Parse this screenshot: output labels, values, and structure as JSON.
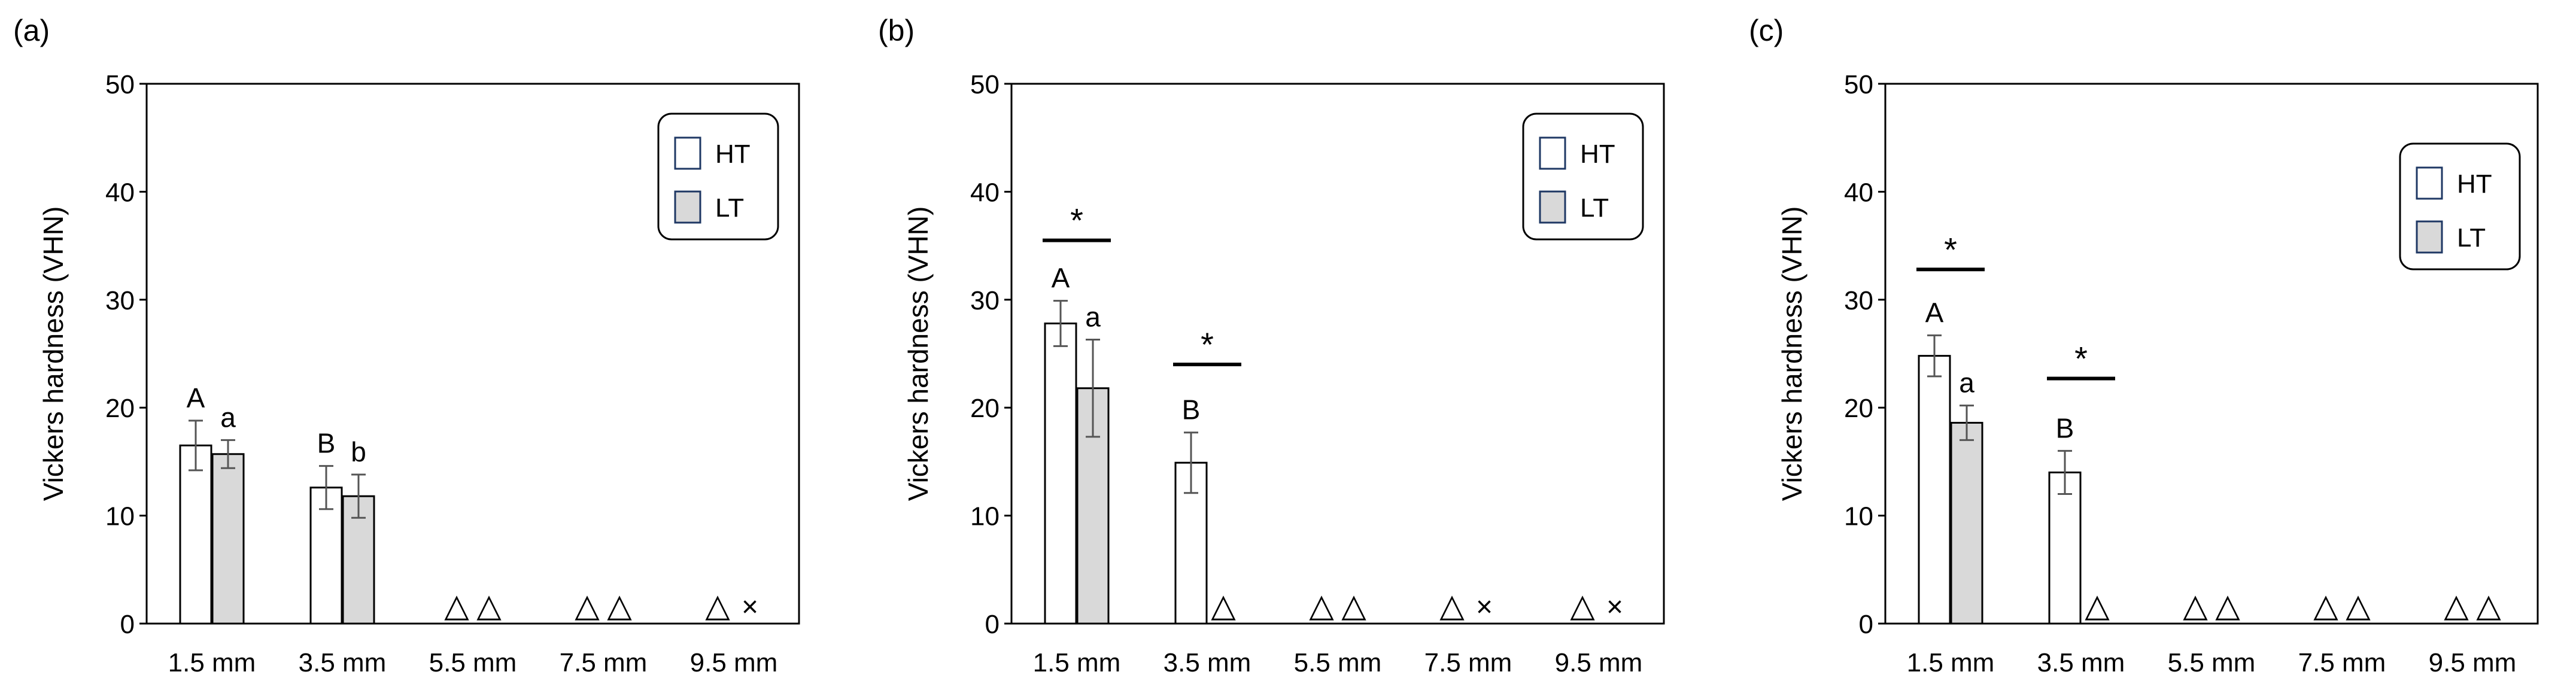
{
  "chart_data": [
    {
      "panel_label": "(a)",
      "type": "bar",
      "categories": [
        "1.5 mm",
        "3.5 mm",
        "5.5 mm",
        "7.5 mm",
        "9.5 mm"
      ],
      "ylabel": "Vickers hardness (VHN)",
      "ylim": [
        0,
        50
      ],
      "yticks": [
        "0",
        "10",
        "20",
        "30",
        "40",
        "50"
      ],
      "grid": false,
      "legend_position": "top-right",
      "series": [
        {
          "name": "HT",
          "fill": "#ffffff",
          "values": [
            16.5,
            12.6,
            null,
            null,
            null
          ],
          "errors": [
            2.3,
            2.0,
            null,
            null,
            null
          ],
          "letters": [
            "A",
            "B",
            null,
            null,
            null
          ],
          "markers": [
            null,
            null,
            "△",
            "△",
            "△"
          ]
        },
        {
          "name": "LT",
          "fill": "#d9d9d9",
          "values": [
            15.7,
            11.8,
            null,
            null,
            null
          ],
          "errors": [
            1.3,
            2.0,
            null,
            null,
            null
          ],
          "letters": [
            "a",
            "b",
            null,
            null,
            null
          ],
          "markers": [
            null,
            null,
            "△",
            "△",
            "×"
          ]
        }
      ],
      "significance": [],
      "colors": {
        "bar_stroke": "#000000",
        "error_bar": "#555555",
        "legend_hatch": "#1f3864"
      }
    },
    {
      "panel_label": "(b)",
      "type": "bar",
      "categories": [
        "1.5 mm",
        "3.5 mm",
        "5.5 mm",
        "7.5 mm",
        "9.5 mm"
      ],
      "ylabel": "Vickers hardness (VHN)",
      "ylim": [
        0,
        50
      ],
      "yticks": [
        "0",
        "10",
        "20",
        "30",
        "40",
        "50"
      ],
      "grid": false,
      "legend_position": "top-right",
      "series": [
        {
          "name": "HT",
          "fill": "#ffffff",
          "values": [
            27.8,
            14.9,
            null,
            null,
            null
          ],
          "errors": [
            2.1,
            2.8,
            null,
            null,
            null
          ],
          "letters": [
            "A",
            "B",
            null,
            null,
            null
          ],
          "markers": [
            null,
            null,
            "△",
            "△",
            "△"
          ]
        },
        {
          "name": "LT",
          "fill": "#d9d9d9",
          "values": [
            21.8,
            null,
            null,
            null,
            null
          ],
          "errors": [
            4.5,
            null,
            null,
            null,
            null
          ],
          "letters": [
            "a",
            null,
            null,
            null,
            null
          ],
          "markers": [
            null,
            "△",
            "△",
            "×",
            "×"
          ]
        }
      ],
      "significance": [
        {
          "category": "1.5 mm",
          "symbol": "*",
          "level": 35.5
        },
        {
          "category": "3.5 mm",
          "symbol": "*",
          "level": 24.0
        }
      ],
      "colors": {
        "bar_stroke": "#000000",
        "error_bar": "#555555",
        "legend_hatch": "#1f3864"
      }
    },
    {
      "panel_label": "(c)",
      "type": "bar",
      "categories": [
        "1.5 mm",
        "3.5 mm",
        "5.5 mm",
        "7.5 mm",
        "9.5 mm"
      ],
      "ylabel": "Vickers hardness (VHN)",
      "ylim": [
        0,
        50
      ],
      "yticks": [
        "0",
        "10",
        "20",
        "30",
        "40",
        "50"
      ],
      "grid": false,
      "legend_position": "top-right",
      "series": [
        {
          "name": "HT",
          "fill": "#ffffff",
          "values": [
            24.8,
            14.0,
            null,
            null,
            null
          ],
          "errors": [
            1.9,
            2.0,
            null,
            null,
            null
          ],
          "letters": [
            "A",
            "B",
            null,
            null,
            null
          ],
          "markers": [
            null,
            null,
            "△",
            "△",
            "△"
          ]
        },
        {
          "name": "LT",
          "fill": "#d9d9d9",
          "values": [
            18.6,
            null,
            null,
            null,
            null
          ],
          "errors": [
            1.6,
            null,
            null,
            null,
            null
          ],
          "letters": [
            "a",
            null,
            null,
            null,
            null
          ],
          "markers": [
            null,
            "△",
            "△",
            "△",
            "△"
          ]
        }
      ],
      "significance": [
        {
          "category": "1.5 mm",
          "symbol": "*",
          "level": 32.8
        },
        {
          "category": "3.5 mm",
          "symbol": "*",
          "level": 22.7
        }
      ],
      "colors": {
        "bar_stroke": "#000000",
        "error_bar": "#555555",
        "legend_hatch": "#1f3864"
      }
    }
  ]
}
